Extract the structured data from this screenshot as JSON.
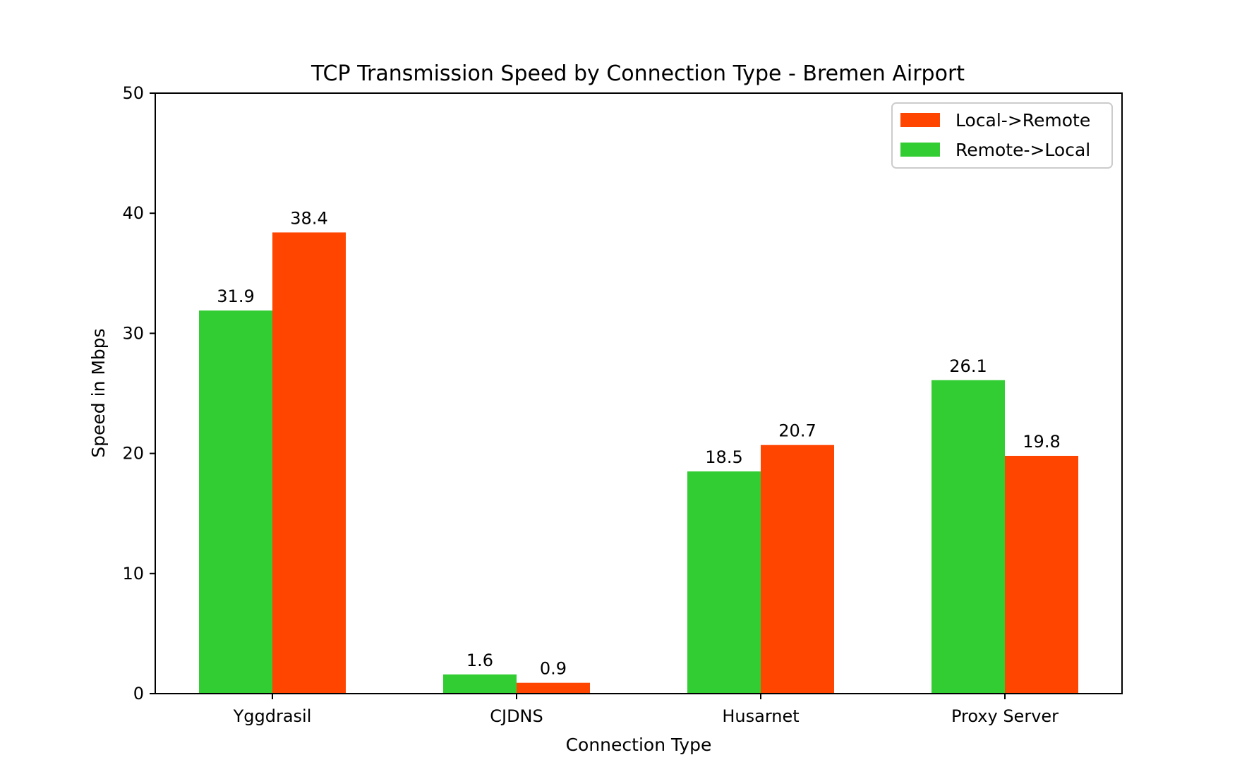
{
  "chart_data": {
    "type": "bar",
    "title": "TCP Transmission Speed by Connection Type - Bremen Airport",
    "xlabel": "Connection Type",
    "ylabel": "Speed in Mbps",
    "categories": [
      "Yggdrasil",
      "CJDNS",
      "Husarnet",
      "Proxy Server"
    ],
    "series": [
      {
        "name": "Remote->Local",
        "color": "#32cd32",
        "values": [
          31.9,
          1.6,
          18.5,
          26.1
        ]
      },
      {
        "name": "Local->Remote",
        "color": "#ff4500",
        "values": [
          38.4,
          0.9,
          20.7,
          19.8
        ]
      }
    ],
    "value_labels": [
      [
        "31.9",
        "1.6",
        "18.5",
        "26.1"
      ],
      [
        "38.4",
        "0.9",
        "20.7",
        "19.8"
      ]
    ],
    "legend_order": [
      "Local->Remote",
      "Remote->Local"
    ],
    "ylim": [
      0,
      50
    ],
    "yticks": [
      0,
      10,
      20,
      30,
      40,
      50
    ],
    "ytick_labels": [
      "0",
      "10",
      "20",
      "30",
      "40",
      "50"
    ],
    "grid": false,
    "legend_position": "top-right"
  }
}
